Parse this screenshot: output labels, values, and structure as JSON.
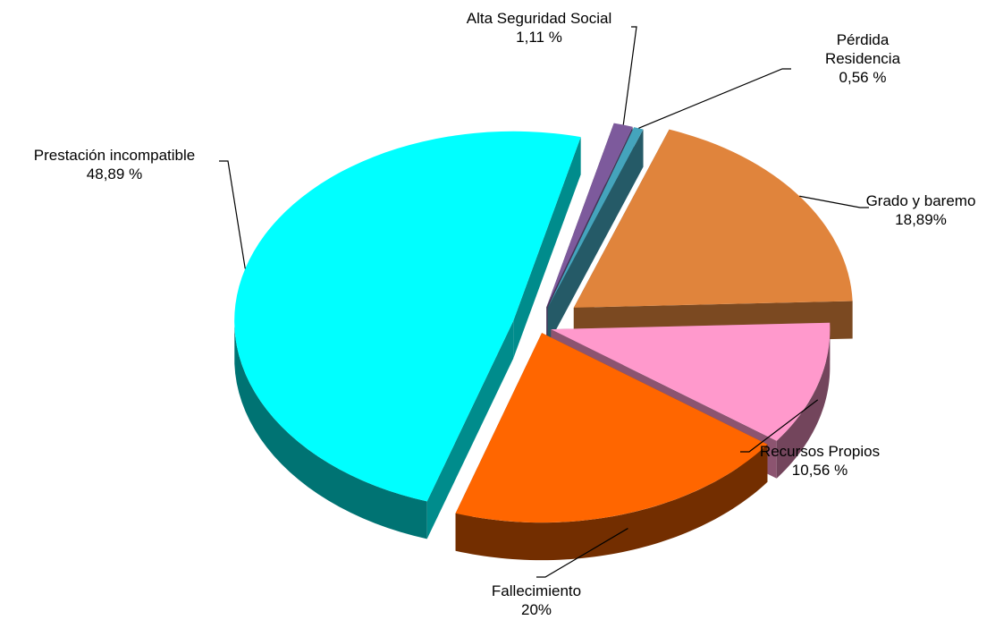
{
  "chart_data": {
    "type": "pie3d",
    "categories": [
      "Alta Seguridad Social",
      "Pérdida Residencia",
      "Grado y baremo",
      "Recursos Propios",
      "Fallecimiento",
      "Prestación incompatible"
    ],
    "values": [
      1.11,
      0.56,
      18.89,
      10.56,
      20,
      48.89
    ],
    "value_labels": [
      "1,11 %",
      "0,56 %",
      "18,89%",
      "10,56 %",
      "20%",
      "48,89 %"
    ],
    "colors": [
      "#7d5a9c",
      "#44a4bc",
      "#e0843c",
      "#ff99cc",
      "#ff6600",
      "#00ffff"
    ]
  }
}
